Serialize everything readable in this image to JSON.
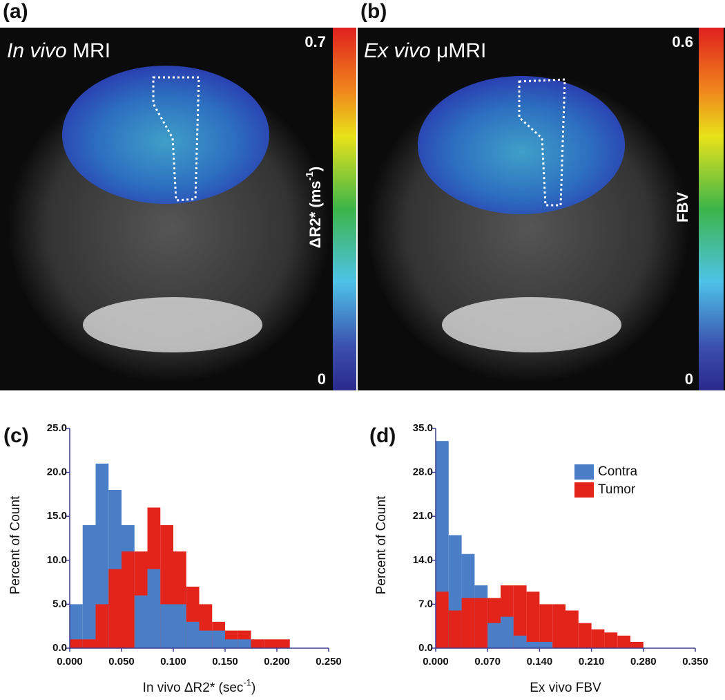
{
  "images": [
    {
      "label": "(a)",
      "title_italic": "In vivo",
      "title": " MRI",
      "scale_max": 0.7,
      "scale_min": 0,
      "scale_label": "ΔR2* (ms",
      "scale_label_sup": "-1",
      "scale_label_end": ")"
    },
    {
      "label": "(b)",
      "title_italic": "Ex vivo",
      "title": " μMRI",
      "scale_max": 0.6,
      "scale_min": 0,
      "scale_label": "FBV"
    }
  ],
  "chart_data": [
    {
      "type": "histogram",
      "panel_label": "(c)",
      "ylabel": "Percent of Count",
      "xlabel": "In vivo ΔR2* (sec",
      "xlabel_sup": "-1",
      "xlabel_end": ")",
      "bins": [
        0,
        0.0125,
        0.025,
        0.0375,
        0.05,
        0.0625,
        0.075,
        0.0875,
        0.1,
        0.1125,
        0.125,
        0.1375,
        0.15,
        0.1625,
        0.175,
        0.1875,
        0.2,
        0.2125,
        0.225,
        0.2375,
        0.25
      ],
      "series": [
        {
          "name": "Contra",
          "color": "#4a7ec6",
          "values": [
            5,
            14,
            21,
            18,
            14,
            6,
            9,
            5,
            5,
            3,
            2,
            2,
            1,
            1,
            0,
            0,
            0,
            0,
            0,
            0
          ]
        },
        {
          "name": "Tumor",
          "color": "#e3241b",
          "values": [
            1,
            1,
            5,
            9,
            11,
            11,
            16,
            14,
            11,
            7,
            5,
            3,
            2,
            2,
            1,
            1,
            1,
            0,
            0,
            0
          ]
        }
      ],
      "xlim": [
        0,
        0.25
      ],
      "xticks": [
        {
          "value": 0,
          "label": "0.000"
        },
        {
          "value": 0.05,
          "label": "0.050"
        },
        {
          "value": 0.1,
          "label": "0.100"
        },
        {
          "value": 0.15,
          "label": "0.150"
        },
        {
          "value": 0.2,
          "label": "0.200"
        },
        {
          "value": 0.25,
          "label": "0.250"
        }
      ],
      "ylim": [
        0,
        25
      ],
      "yticks": [
        {
          "value": 0,
          "label": "0.0"
        },
        {
          "value": 5,
          "label": "5.0"
        },
        {
          "value": 10,
          "label": "10.0"
        },
        {
          "value": 15,
          "label": "15.0"
        },
        {
          "value": 20,
          "label": "20.0"
        },
        {
          "value": 25,
          "label": "25.0"
        }
      ]
    },
    {
      "type": "histogram",
      "panel_label": "(d)",
      "ylabel": "Percent of Count",
      "xlabel": "Ex vivo FBV",
      "legend": "upper right",
      "bins": [
        0,
        0.0175,
        0.035,
        0.0525,
        0.07,
        0.0875,
        0.105,
        0.1225,
        0.14,
        0.1575,
        0.175,
        0.1925,
        0.21,
        0.2275,
        0.245,
        0.2625,
        0.28,
        0.2975,
        0.315,
        0.3325,
        0.35
      ],
      "series": [
        {
          "name": "Contra",
          "color": "#4a7ec6",
          "values": [
            33,
            18,
            15,
            10,
            4,
            5,
            2,
            1,
            1,
            0,
            0,
            0,
            0,
            0,
            0,
            0,
            0,
            0,
            0,
            0
          ]
        },
        {
          "name": "Tumor",
          "color": "#e3241b",
          "values": [
            9,
            6,
            8,
            8,
            8,
            10,
            10,
            9,
            7,
            7,
            6,
            4,
            3,
            2.5,
            2,
            1,
            0,
            0,
            0,
            0
          ]
        }
      ],
      "xlim": [
        0,
        0.35
      ],
      "xticks": [
        {
          "value": 0,
          "label": "0.000"
        },
        {
          "value": 0.07,
          "label": "0.070"
        },
        {
          "value": 0.14,
          "label": "0.140"
        },
        {
          "value": 0.21,
          "label": "0.210"
        },
        {
          "value": 0.28,
          "label": "0.280"
        },
        {
          "value": 0.35,
          "label": "0.350"
        }
      ],
      "ylim": [
        0,
        35
      ],
      "yticks": [
        {
          "value": 0,
          "label": "0.0"
        },
        {
          "value": 7,
          "label": "7.0"
        },
        {
          "value": 14,
          "label": "14.0"
        },
        {
          "value": 21,
          "label": "21.0"
        },
        {
          "value": 28,
          "label": "28.0"
        },
        {
          "value": 35,
          "label": "35.0"
        }
      ]
    }
  ]
}
